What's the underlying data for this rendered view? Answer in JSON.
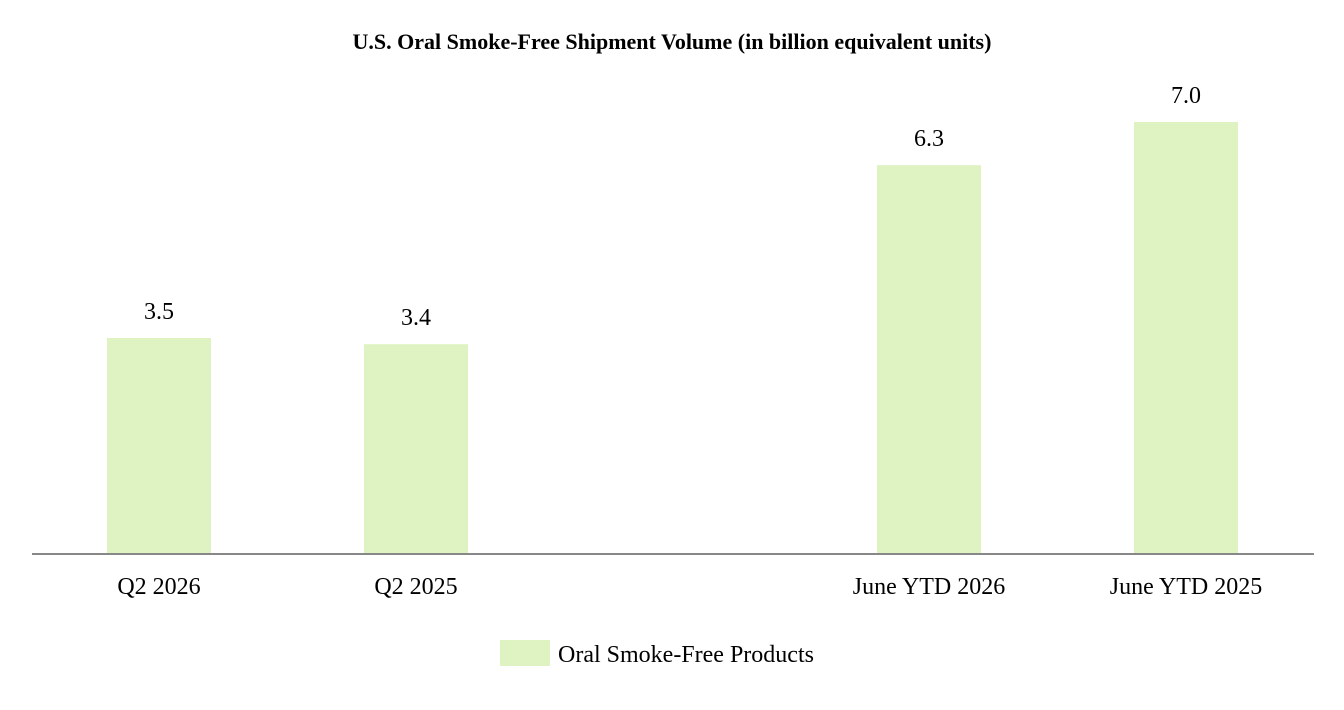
{
  "chart_data": {
    "type": "bar",
    "title": "U.S. Oral Smoke-Free Shipment Volume (in billion equivalent units)",
    "xlabel": "",
    "ylabel": "",
    "categories": [
      "Q2 2026",
      "Q2 2025",
      "June YTD 2026",
      "June YTD 2025"
    ],
    "series": [
      {
        "name": "Oral Smoke-Free Products",
        "values": [
          3.5,
          3.4,
          6.3,
          7.0
        ],
        "labels": [
          "3.5",
          "3.4",
          "6.3",
          "7.0"
        ],
        "color": "#dff2c1"
      }
    ],
    "ylim": [
      0,
      7.0
    ],
    "grid": false,
    "legend_position": "bottom-center",
    "axis_color": "#888888"
  }
}
